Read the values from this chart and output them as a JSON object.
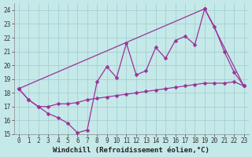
{
  "xlabel": "Windchill (Refroidissement éolien,°C)",
  "xlim": [
    -0.5,
    23.5
  ],
  "ylim": [
    15,
    24.5
  ],
  "xticks": [
    0,
    1,
    2,
    3,
    4,
    5,
    6,
    7,
    8,
    9,
    10,
    11,
    12,
    13,
    14,
    15,
    16,
    17,
    18,
    19,
    20,
    21,
    22,
    23
  ],
  "yticks": [
    15,
    16,
    17,
    18,
    19,
    20,
    21,
    22,
    23,
    24
  ],
  "bg_color": "#c5e8e8",
  "grid_color": "#a0cccc",
  "line_color": "#993399",
  "line1_x": [
    0,
    1,
    2,
    3,
    4,
    5,
    6,
    7,
    8,
    9,
    10,
    11,
    12,
    13,
    14,
    15,
    16,
    17,
    18,
    19,
    20,
    21,
    22,
    23
  ],
  "line1_y": [
    18.3,
    17.5,
    17.0,
    16.5,
    16.2,
    15.8,
    15.1,
    15.3,
    18.8,
    19.9,
    19.1,
    21.6,
    19.3,
    19.6,
    21.3,
    20.5,
    21.8,
    22.1,
    21.5,
    24.1,
    22.8,
    21.0,
    19.5,
    18.5
  ],
  "line2_x": [
    0,
    1,
    2,
    3,
    4,
    5,
    6,
    7,
    8,
    9,
    10,
    11,
    12,
    13,
    14,
    15,
    16,
    17,
    18,
    19,
    20,
    21,
    22,
    23
  ],
  "line2_y": [
    18.3,
    17.5,
    17.0,
    17.0,
    17.2,
    17.2,
    17.3,
    17.5,
    17.6,
    17.7,
    17.8,
    17.9,
    18.0,
    18.1,
    18.2,
    18.3,
    18.4,
    18.5,
    18.6,
    18.7,
    18.7,
    18.7,
    18.8,
    18.5
  ],
  "line3_x": [
    0,
    19,
    23
  ],
  "line3_y": [
    18.3,
    24.1,
    18.5
  ],
  "font_size": 6.5,
  "tick_font_size": 5.5,
  "marker_size": 2.5,
  "lw": 0.9
}
